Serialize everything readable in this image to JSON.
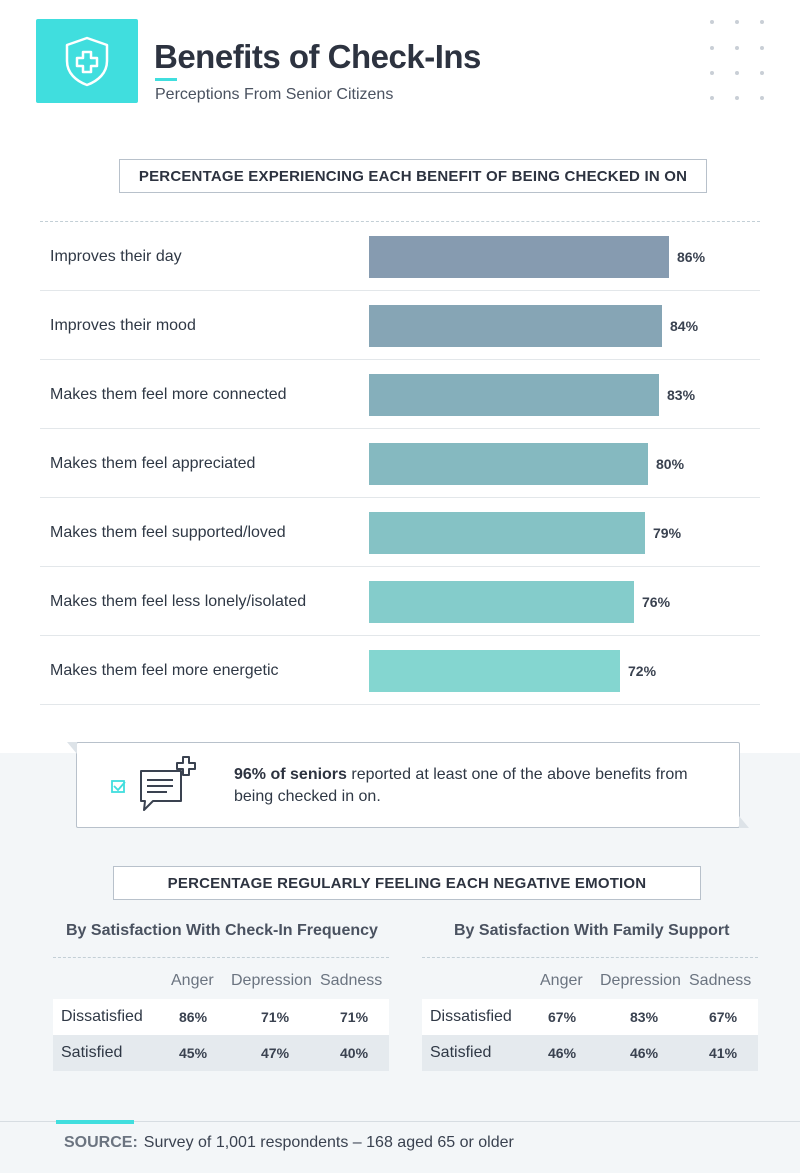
{
  "header": {
    "title": "Benefits of Check-Ins",
    "subtitle": "Perceptions From Senior Citizens"
  },
  "icons": {
    "logo": "shield-plus-icon",
    "callout": "chat-checklist-icon"
  },
  "colors": {
    "accent": "#40dede",
    "bar_darkest": "#869bb0",
    "bar_lightest": "#84d6d0"
  },
  "section1": {
    "heading": "PERCENTAGE EXPERIENCING EACH BENEFIT OF BEING CHECKED IN ON"
  },
  "chart_data": {
    "type": "bar",
    "orientation": "horizontal",
    "categories": [
      "Improves their day",
      "Improves their mood",
      "Makes them feel more connected",
      "Makes them feel appreciated",
      "Makes them feel supported/loved",
      "Makes them feel less lonely/isolated",
      "Makes them feel more energetic"
    ],
    "values": [
      86,
      84,
      83,
      80,
      79,
      76,
      72
    ],
    "value_labels": [
      "86%",
      "84%",
      "83%",
      "80%",
      "79%",
      "76%",
      "72%"
    ],
    "title": "PERCENTAGE EXPERIENCING EACH BENEFIT OF BEING CHECKED IN ON",
    "xlim": [
      0,
      100
    ],
    "unit": "%",
    "grid": false
  },
  "callout": {
    "highlight": "96% of seniors",
    "text": " reported at least one of the above benefits from being checked in on."
  },
  "section2": {
    "heading": "PERCENTAGE REGULARLY FEELING EACH NEGATIVE EMOTION",
    "tables": [
      {
        "title": "By Satisfaction With Check-In Frequency",
        "columns": [
          "Anger",
          "Depression",
          "Sadness"
        ],
        "rows": [
          {
            "label": "Dissatisfied",
            "values": [
              "86%",
              "71%",
              "71%"
            ]
          },
          {
            "label": "Satisfied",
            "values": [
              "45%",
              "47%",
              "40%"
            ]
          }
        ]
      },
      {
        "title": "By Satisfaction With Family Support",
        "columns": [
          "Anger",
          "Depression",
          "Sadness"
        ],
        "rows": [
          {
            "label": "Dissatisfied",
            "values": [
              "67%",
              "83%",
              "67%"
            ]
          },
          {
            "label": "Satisfied",
            "values": [
              "46%",
              "46%",
              "41%"
            ]
          }
        ]
      }
    ]
  },
  "footer": {
    "source_label": "SOURCE:",
    "source_text": "Survey of 1,001 respondents – 168 aged 65 or older"
  }
}
